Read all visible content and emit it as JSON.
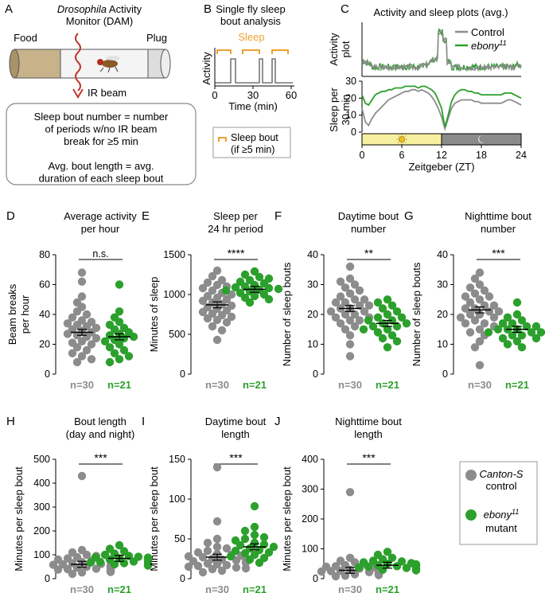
{
  "colors": {
    "control": "#8c8c8c",
    "mutant": "#2ca02c",
    "orange": "#f0a030",
    "red": "#c0392b",
    "day": "#f7f0a0",
    "night": "#8a8a8a"
  },
  "panelA": {
    "letter": "A",
    "title_italic": "Drosophila",
    "title_rest": " Activity",
    "title2": "Monitor (DAM)",
    "food": "Food",
    "plug": "Plug",
    "beam": "IR beam",
    "box": [
      "Sleep bout number = number",
      "of periods w/no IR beam",
      "break for ≥5 min",
      "",
      "Avg. bout length = avg.",
      "duration of each sleep bout"
    ]
  },
  "panelB": {
    "letter": "B",
    "title1": "Single fly sleep",
    "title2": "bout analysis",
    "sleep": "Sleep",
    "ylabel": "Activity",
    "xlabel": "Time (min)",
    "xticks": [
      "0",
      "30",
      "60"
    ],
    "legend1": "Sleep bout",
    "legend2": "(if ≥5 min)"
  },
  "panelC": {
    "letter": "C",
    "title": "Activity and sleep plots (avg.)",
    "ylabel_top1": "Activity",
    "ylabel_top2": "plot",
    "ylabel_bot1": "Sleep per",
    "ylabel_bot2": "30 min",
    "legend_control": "Control",
    "legend_mutant": "ebony",
    "legend_sup": "11",
    "xlabel": "Zeitgeber (ZT)",
    "xticks": [
      "0",
      "6",
      "12",
      "18",
      "24"
    ],
    "yticks_bot": [
      "0",
      "10",
      "20",
      "30"
    ]
  },
  "chart_data": [
    {
      "type": "line",
      "title": "Activity and sleep plots (avg.)",
      "ylabel": "Sleep per 30 min",
      "xlabel": "Zeitgeber (ZT)",
      "xlim": [
        0,
        24
      ],
      "ylim": [
        0,
        30
      ],
      "x": [
        0,
        0.5,
        1,
        1.5,
        2,
        2.5,
        3,
        3.5,
        4,
        4.5,
        5,
        5.5,
        6,
        6.5,
        7,
        7.5,
        8,
        8.5,
        9,
        9.5,
        10,
        10.5,
        11,
        11.5,
        12,
        12.5,
        13,
        13.5,
        14,
        14.5,
        15,
        15.5,
        16,
        16.5,
        17,
        17.5,
        18,
        18.5,
        19,
        19.5,
        20,
        20.5,
        21,
        21.5,
        22,
        22.5,
        23,
        23.5,
        24
      ],
      "series": [
        {
          "name": "Control",
          "values": [
            14,
            6,
            4,
            8,
            11,
            13,
            15,
            17,
            19,
            20,
            21,
            22,
            23,
            24,
            24,
            25,
            25,
            24,
            25,
            24,
            23,
            21,
            18,
            14,
            9,
            2,
            8,
            14,
            17,
            18,
            19,
            19,
            19,
            19,
            18,
            18,
            17,
            17,
            17,
            17,
            17,
            17,
            17,
            18,
            19,
            19,
            18,
            17,
            16
          ]
        },
        {
          "name": "ebony11",
          "values": [
            22,
            17,
            16,
            19,
            22,
            23,
            24,
            24,
            25,
            25,
            26,
            26,
            26,
            27,
            27,
            27,
            27,
            26,
            27,
            27,
            26,
            25,
            23,
            19,
            14,
            3,
            10,
            18,
            22,
            24,
            25,
            25,
            24,
            24,
            23,
            23,
            22,
            22,
            22,
            22,
            22,
            22,
            22,
            23,
            23,
            23,
            22,
            21,
            20
          ]
        }
      ]
    },
    {
      "type": "scatter",
      "title": "Average activity per hour",
      "ylabel": "Beam breaks per hour",
      "ylim": [
        0,
        80
      ],
      "categories": [
        "n=30",
        "n=21"
      ],
      "significance": "n.s.",
      "series": [
        {
          "name": "Control",
          "mean": 28,
          "values": [
            68,
            62,
            52,
            48,
            45,
            42,
            40,
            38,
            36,
            35,
            34,
            33,
            32,
            31,
            30,
            29,
            28,
            27,
            26,
            25,
            24,
            22,
            21,
            20,
            18,
            16,
            14,
            12,
            10,
            8
          ]
        },
        {
          "name": "ebony11",
          "mean": 25,
          "values": [
            60,
            42,
            38,
            35,
            33,
            31,
            30,
            28,
            27,
            26,
            25,
            24,
            23,
            22,
            20,
            18,
            16,
            14,
            12,
            10,
            8
          ]
        }
      ]
    },
    {
      "type": "scatter",
      "title": "Sleep per 24 hr period",
      "ylabel": "Minutes of sleep",
      "ylim": [
        0,
        1500
      ],
      "categories": [
        "n=30",
        "n=21"
      ],
      "significance": "****",
      "series": [
        {
          "name": "Control",
          "mean": 870,
          "values": [
            1300,
            1230,
            1180,
            1150,
            1120,
            1100,
            1080,
            1050,
            1020,
            1000,
            980,
            960,
            940,
            920,
            900,
            880,
            860,
            840,
            820,
            800,
            780,
            760,
            740,
            720,
            700,
            680,
            650,
            600,
            550,
            430
          ]
        },
        {
          "name": "ebony11",
          "mean": 1065,
          "values": [
            1290,
            1250,
            1220,
            1200,
            1180,
            1160,
            1140,
            1120,
            1100,
            1090,
            1080,
            1070,
            1060,
            1050,
            1040,
            1020,
            1000,
            980,
            960,
            940,
            900
          ]
        }
      ]
    },
    {
      "type": "scatter",
      "title": "Daytime bout number",
      "ylabel": "Number of sleep bouts",
      "ylim": [
        0,
        40
      ],
      "categories": [
        "n=30",
        "n=21"
      ],
      "significance": "**",
      "series": [
        {
          "name": "Control",
          "mean": 22,
          "values": [
            36,
            32,
            31,
            30,
            29,
            28,
            27,
            26,
            25,
            25,
            24,
            24,
            23,
            23,
            22,
            22,
            21,
            21,
            20,
            20,
            19,
            19,
            18,
            18,
            17,
            16,
            15,
            13,
            10,
            6
          ]
        },
        {
          "name": "ebony11",
          "mean": 17,
          "values": [
            25,
            24,
            23,
            22,
            21,
            20,
            19,
            19,
            18,
            18,
            17,
            17,
            16,
            16,
            15,
            15,
            14,
            13,
            12,
            11,
            9
          ]
        }
      ]
    },
    {
      "type": "scatter",
      "title": "Nighttime bout number",
      "ylabel": "Number of sleep bouts",
      "ylim": [
        0,
        40
      ],
      "categories": [
        "n=30",
        "n=21"
      ],
      "significance": "***",
      "series": [
        {
          "name": "Control",
          "mean": 21.5,
          "values": [
            34,
            32,
            30,
            29,
            28,
            27,
            26,
            26,
            25,
            24,
            23,
            23,
            22,
            22,
            21,
            21,
            20,
            20,
            19,
            19,
            18,
            17,
            17,
            16,
            15,
            14,
            13,
            11,
            9,
            3
          ]
        },
        {
          "name": "ebony11",
          "mean": 15,
          "values": [
            24,
            20,
            19,
            18,
            17,
            17,
            16,
            16,
            15,
            15,
            15,
            14,
            14,
            14,
            13,
            13,
            12,
            12,
            11,
            10,
            9
          ]
        }
      ]
    },
    {
      "type": "scatter",
      "title": "Bout length (day and night)",
      "ylabel": "Minutes per sleep bout",
      "ylim": [
        0,
        500
      ],
      "categories": [
        "n=30",
        "n=21"
      ],
      "significance": "***",
      "series": [
        {
          "name": "Control",
          "mean": 60,
          "values": [
            430,
            120,
            110,
            100,
            95,
            90,
            85,
            80,
            75,
            70,
            65,
            62,
            60,
            58,
            55,
            52,
            50,
            48,
            46,
            44,
            42,
            40,
            38,
            36,
            34,
            32,
            30,
            28,
            26,
            20
          ]
        },
        {
          "name": "ebony11",
          "mean": 85,
          "values": [
            140,
            125,
            115,
            105,
            100,
            95,
            92,
            90,
            88,
            85,
            83,
            80,
            78,
            75,
            72,
            70,
            68,
            65,
            62,
            60,
            55
          ]
        }
      ]
    },
    {
      "type": "scatter",
      "title": "Daytime bout length",
      "ylabel": "Minutes per sleep bout",
      "ylim": [
        0,
        150
      ],
      "categories": [
        "n=30",
        "n=21"
      ],
      "significance": "***",
      "series": [
        {
          "name": "Control",
          "mean": 27,
          "values": [
            140,
            72,
            50,
            45,
            40,
            38,
            35,
            33,
            31,
            30,
            29,
            28,
            27,
            26,
            25,
            24,
            23,
            22,
            21,
            20,
            19,
            18,
            17,
            16,
            15,
            14,
            13,
            12,
            10,
            8
          ]
        },
        {
          "name": "ebony11",
          "mean": 40,
          "values": [
            91,
            65,
            60,
            55,
            52,
            50,
            48,
            45,
            43,
            42,
            40,
            38,
            36,
            35,
            33,
            32,
            30,
            28,
            26,
            24,
            20
          ]
        }
      ]
    },
    {
      "type": "scatter",
      "title": "Nighttime bout length",
      "ylabel": "Minutes per sleep bout",
      "ylim": [
        0,
        400
      ],
      "categories": [
        "n=30",
        "n=21"
      ],
      "significance": "***",
      "series": [
        {
          "name": "Control",
          "mean": 28,
          "values": [
            290,
            70,
            60,
            55,
            50,
            45,
            42,
            40,
            38,
            36,
            34,
            32,
            30,
            28,
            26,
            25,
            24,
            22,
            21,
            20,
            19,
            18,
            17,
            16,
            15,
            14,
            13,
            12,
            10,
            8
          ]
        },
        {
          "name": "ebony11",
          "mean": 45,
          "values": [
            90,
            80,
            70,
            65,
            60,
            58,
            55,
            52,
            50,
            48,
            46,
            45,
            44,
            42,
            40,
            38,
            36,
            34,
            32,
            30,
            28
          ]
        }
      ]
    }
  ],
  "scatter_panels": [
    {
      "letter": "D",
      "title": [
        "Average activity",
        "per hour"
      ],
      "ylabel": [
        "Beam breaks",
        "per hour"
      ],
      "yticks": [
        "0",
        "20",
        "40",
        "60",
        "80"
      ],
      "sig": "n.s.",
      "n1": "n=30",
      "n2": "n=21"
    },
    {
      "letter": "E",
      "title": [
        "Sleep per",
        "24 hr period"
      ],
      "ylabel": [
        "Minutes of sleep"
      ],
      "yticks": [
        "0",
        "500",
        "1000",
        "1500"
      ],
      "sig": "****",
      "n1": "n=30",
      "n2": "n=21"
    },
    {
      "letter": "F",
      "title": [
        "Daytime bout",
        "number"
      ],
      "ylabel": [
        "Number of sleep bouts"
      ],
      "yticks": [
        "0",
        "10",
        "20",
        "30",
        "40"
      ],
      "sig": "**",
      "n1": "n=30",
      "n2": "n=21"
    },
    {
      "letter": "G",
      "title": [
        "Nighttime bout",
        "number"
      ],
      "ylabel": [
        "Number of sleep bouts"
      ],
      "yticks": [
        "0",
        "10",
        "20",
        "30",
        "40"
      ],
      "sig": "***",
      "n1": "n=30",
      "n2": "n=21"
    },
    {
      "letter": "H",
      "title": [
        "Bout length",
        "(day and night)"
      ],
      "ylabel": [
        "Minutes per sleep bout"
      ],
      "yticks": [
        "0",
        "100",
        "200",
        "300",
        "400",
        "500"
      ],
      "sig": "***",
      "n1": "n=30",
      "n2": "n=21"
    },
    {
      "letter": "I",
      "title": [
        "Daytime bout",
        "length"
      ],
      "ylabel": [
        "Minutes per sleep bout"
      ],
      "yticks": [
        "0",
        "50",
        "100",
        "150"
      ],
      "sig": "***",
      "n1": "n=30",
      "n2": "n=21"
    },
    {
      "letter": "J",
      "title": [
        "Nighttime bout",
        "length"
      ],
      "ylabel": [
        "Minutes per sleep bout"
      ],
      "yticks": [
        "0",
        "100",
        "200",
        "300",
        "400"
      ],
      "sig": "***",
      "n1": "n=30",
      "n2": "n=21"
    }
  ],
  "legend": {
    "control_italic": "Canton-S",
    "control_line2": "control",
    "mutant_italic": "ebony",
    "mutant_sup": "11",
    "mutant_line2": "mutant"
  }
}
